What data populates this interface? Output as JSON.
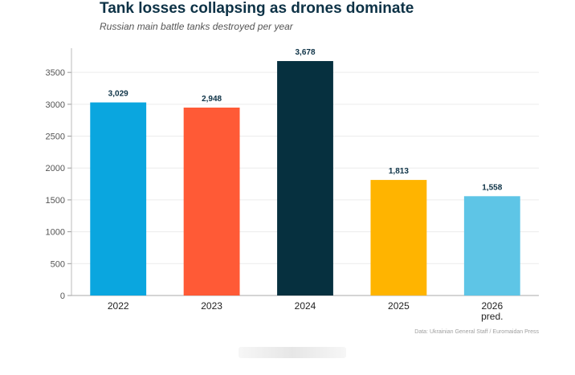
{
  "chart_data": {
    "type": "bar",
    "title": "Tank losses collapsing as drones dominate",
    "subtitle": "Russian main battle tanks destroyed per year",
    "categories": [
      "2022",
      "2023",
      "2024",
      "2025",
      "2026 pred."
    ],
    "category_lines": [
      [
        "2022"
      ],
      [
        "2023"
      ],
      [
        "2024"
      ],
      [
        "2025"
      ],
      [
        "2026",
        "pred."
      ]
    ],
    "values": [
      3029,
      2948,
      3678,
      1813,
      1558
    ],
    "value_labels": [
      "3,029",
      "2,948",
      "3,678",
      "1,813",
      "1,558"
    ],
    "colors": [
      "#0aa6df",
      "#ff5a36",
      "#06303f",
      "#ffb400",
      "#5ec5e6"
    ],
    "ylim": [
      0,
      3880
    ],
    "yticks": [
      0,
      500,
      1000,
      1500,
      2000,
      2500,
      3000,
      3500
    ],
    "grid": true,
    "xlabel": "",
    "ylabel": "",
    "source": "Data: Ukrainian General Staff / Euromaidan Press"
  }
}
